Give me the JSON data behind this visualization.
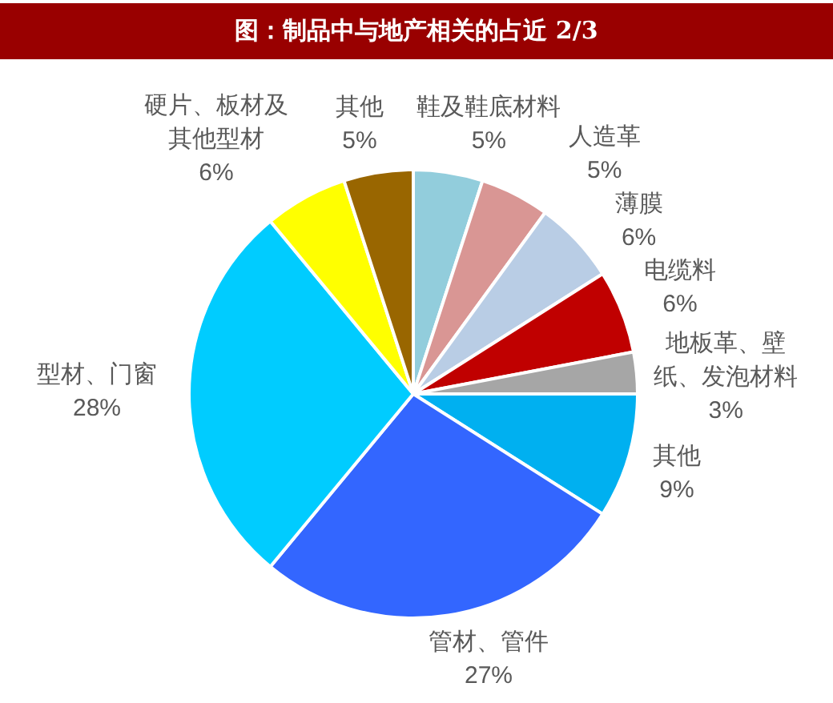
{
  "chart_data": {
    "type": "pie",
    "title": "图：制品中与地产相关的占近 2/3",
    "categories": [
      "鞋及鞋底材料",
      "人造革",
      "薄膜",
      "电缆料",
      "地板革、壁纸、发泡材料",
      "其他",
      "管材、管件",
      "型材、门窗",
      "硬片、板材及其他型材",
      "其他"
    ],
    "values": [
      5,
      5,
      6,
      6,
      3,
      9,
      27,
      28,
      6,
      5
    ],
    "value_labels": [
      "5%",
      "5%",
      "6%",
      "6%",
      "3%",
      "9%",
      "27%",
      "28%",
      "6%",
      "5%"
    ],
    "colors": [
      "#92cddc",
      "#d99694",
      "#b9cde5",
      "#c00000",
      "#a6a6a6",
      "#00b0f0",
      "#3366ff",
      "#00ccff",
      "#ffff00",
      "#996600"
    ]
  }
}
